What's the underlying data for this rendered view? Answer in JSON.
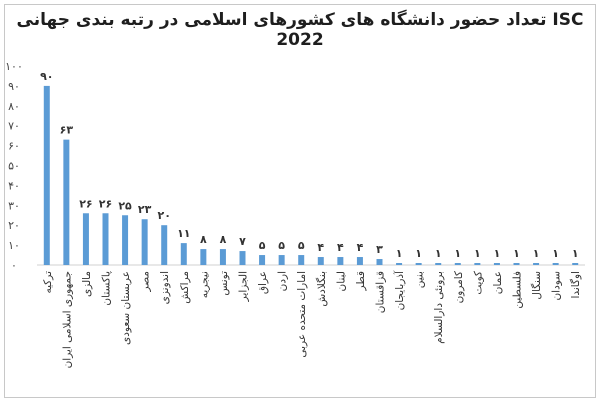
{
  "chart_data": {
    "type": "bar",
    "title": "تعداد حضور دانشگاه های کشورهای اسلامی در رتبه بندی جهانی ISC 2022",
    "xlabel": "",
    "ylabel": "",
    "ylim": [
      0,
      100
    ],
    "yticks": [
      "۰",
      "۱۰",
      "۲۰",
      "۳۰",
      "۴۰",
      "۵۰",
      "۶۰",
      "۷۰",
      "۸۰",
      "۹۰",
      "۱۰۰"
    ],
    "grid": false,
    "bar_color": "#5b9bd5",
    "categories": [
      "ترکیه",
      "جمهوری اسلامی ایران",
      "مالزی",
      "پاکستان",
      "عربستان سعودی",
      "مصر",
      "اندونزی",
      "مراکش",
      "نیجریه",
      "تونس",
      "الجزایر",
      "عراق",
      "اردن",
      "امارات متحده عربی",
      "بنگلادش",
      "لبنان",
      "قطر",
      "قزاقستان",
      "آذربایجان",
      "بنین",
      "برونئی دارالسلام",
      "کامرون",
      "کویت",
      "عمان",
      "فلسطین",
      "سنگال",
      "سودان",
      "اوگاندا"
    ],
    "values": [
      90,
      63,
      26,
      26,
      25,
      23,
      20,
      11,
      8,
      8,
      7,
      5,
      5,
      5,
      4,
      4,
      4,
      3,
      1,
      1,
      1,
      1,
      1,
      1,
      1,
      1,
      1,
      1
    ],
    "value_labels": [
      "۹۰",
      "۶۳",
      "۲۶",
      "۲۶",
      "۲۵",
      "۲۳",
      "۲۰",
      "۱۱",
      "۸",
      "۸",
      "۷",
      "۵",
      "۵",
      "۵",
      "۴",
      "۴",
      "۴",
      "۳",
      "۱",
      "۱",
      "۱",
      "۱",
      "۱",
      "۱",
      "۱",
      "۱",
      "۱",
      "۱"
    ]
  }
}
